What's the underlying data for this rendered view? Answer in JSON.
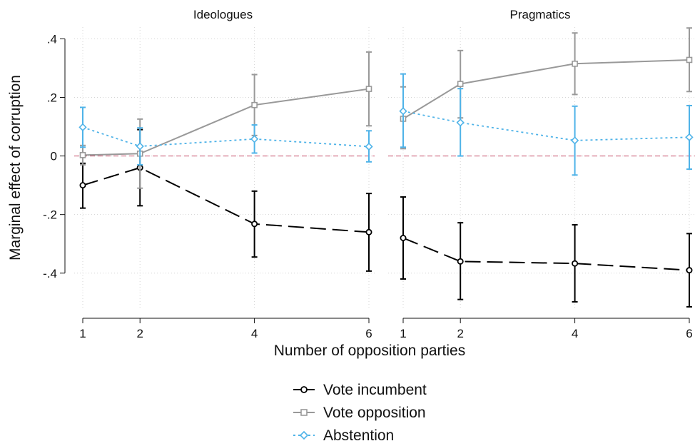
{
  "chart_data": {
    "type": "line",
    "xlabel": "Number of opposition parties",
    "ylabel": "Marginal effect of corruption",
    "x_ticks": [
      1,
      2,
      4,
      6
    ],
    "y_ticks": [
      -0.4,
      -0.2,
      0,
      0.2,
      0.4
    ],
    "y_tick_labels": [
      "-.4",
      "-.2",
      "0",
      ".2",
      ".4"
    ],
    "xlim": [
      1,
      6
    ],
    "ylim": [
      -0.52,
      0.44
    ],
    "grid": true,
    "reference_line": 0,
    "legend_position": "bottom",
    "panels": [
      {
        "title": "Ideologues",
        "series": [
          {
            "name": "Vote incumbent",
            "color": "#000000",
            "marker": "circle",
            "line": "longdash",
            "x": [
              1,
              2,
              4,
              6
            ],
            "y": [
              -0.1,
              -0.04,
              -0.232,
              -0.26
            ],
            "lo": [
              -0.178,
              -0.17,
              -0.345,
              -0.393
            ],
            "hi": [
              -0.025,
              0.09,
              -0.12,
              -0.128
            ]
          },
          {
            "name": "Vote opposition",
            "color": "#999999",
            "marker": "square",
            "line": "solid",
            "x": [
              1,
              2,
              4,
              6
            ],
            "y": [
              0.003,
              0.008,
              0.174,
              0.229
            ],
            "lo": [
              -0.03,
              -0.11,
              0.07,
              0.103
            ],
            "hi": [
              0.036,
              0.126,
              0.278,
              0.355
            ]
          },
          {
            "name": "Abstention",
            "color": "#4fb3e8",
            "marker": "diamond",
            "line": "dotted",
            "x": [
              1,
              2,
              4,
              6
            ],
            "y": [
              0.098,
              0.033,
              0.058,
              0.032
            ],
            "lo": [
              0.03,
              -0.03,
              0.01,
              -0.02
            ],
            "hi": [
              0.166,
              0.096,
              0.106,
              0.086
            ]
          }
        ]
      },
      {
        "title": "Pragmatics",
        "series": [
          {
            "name": "Vote incumbent",
            "color": "#000000",
            "marker": "circle",
            "line": "longdash",
            "x": [
              1,
              2,
              4,
              6
            ],
            "y": [
              -0.28,
              -0.36,
              -0.367,
              -0.39
            ],
            "lo": [
              -0.42,
              -0.49,
              -0.498,
              -0.515
            ],
            "hi": [
              -0.14,
              -0.228,
              -0.235,
              -0.265
            ]
          },
          {
            "name": "Vote opposition",
            "color": "#999999",
            "marker": "square",
            "line": "solid",
            "x": [
              1,
              2,
              4,
              6
            ],
            "y": [
              0.127,
              0.246,
              0.315,
              0.328
            ],
            "lo": [
              0.025,
              0.13,
              0.21,
              0.22
            ],
            "hi": [
              0.236,
              0.36,
              0.42,
              0.437
            ]
          },
          {
            "name": "Abstention",
            "color": "#4fb3e8",
            "marker": "diamond",
            "line": "dotted",
            "x": [
              1,
              2,
              4,
              6
            ],
            "y": [
              0.153,
              0.114,
              0.053,
              0.064
            ],
            "lo": [
              0.03,
              0.0,
              -0.065,
              -0.045
            ],
            "hi": [
              0.28,
              0.23,
              0.17,
              0.172
            ]
          }
        ]
      }
    ],
    "legend": [
      "Vote incumbent",
      "Vote opposition",
      "Abstention"
    ]
  }
}
